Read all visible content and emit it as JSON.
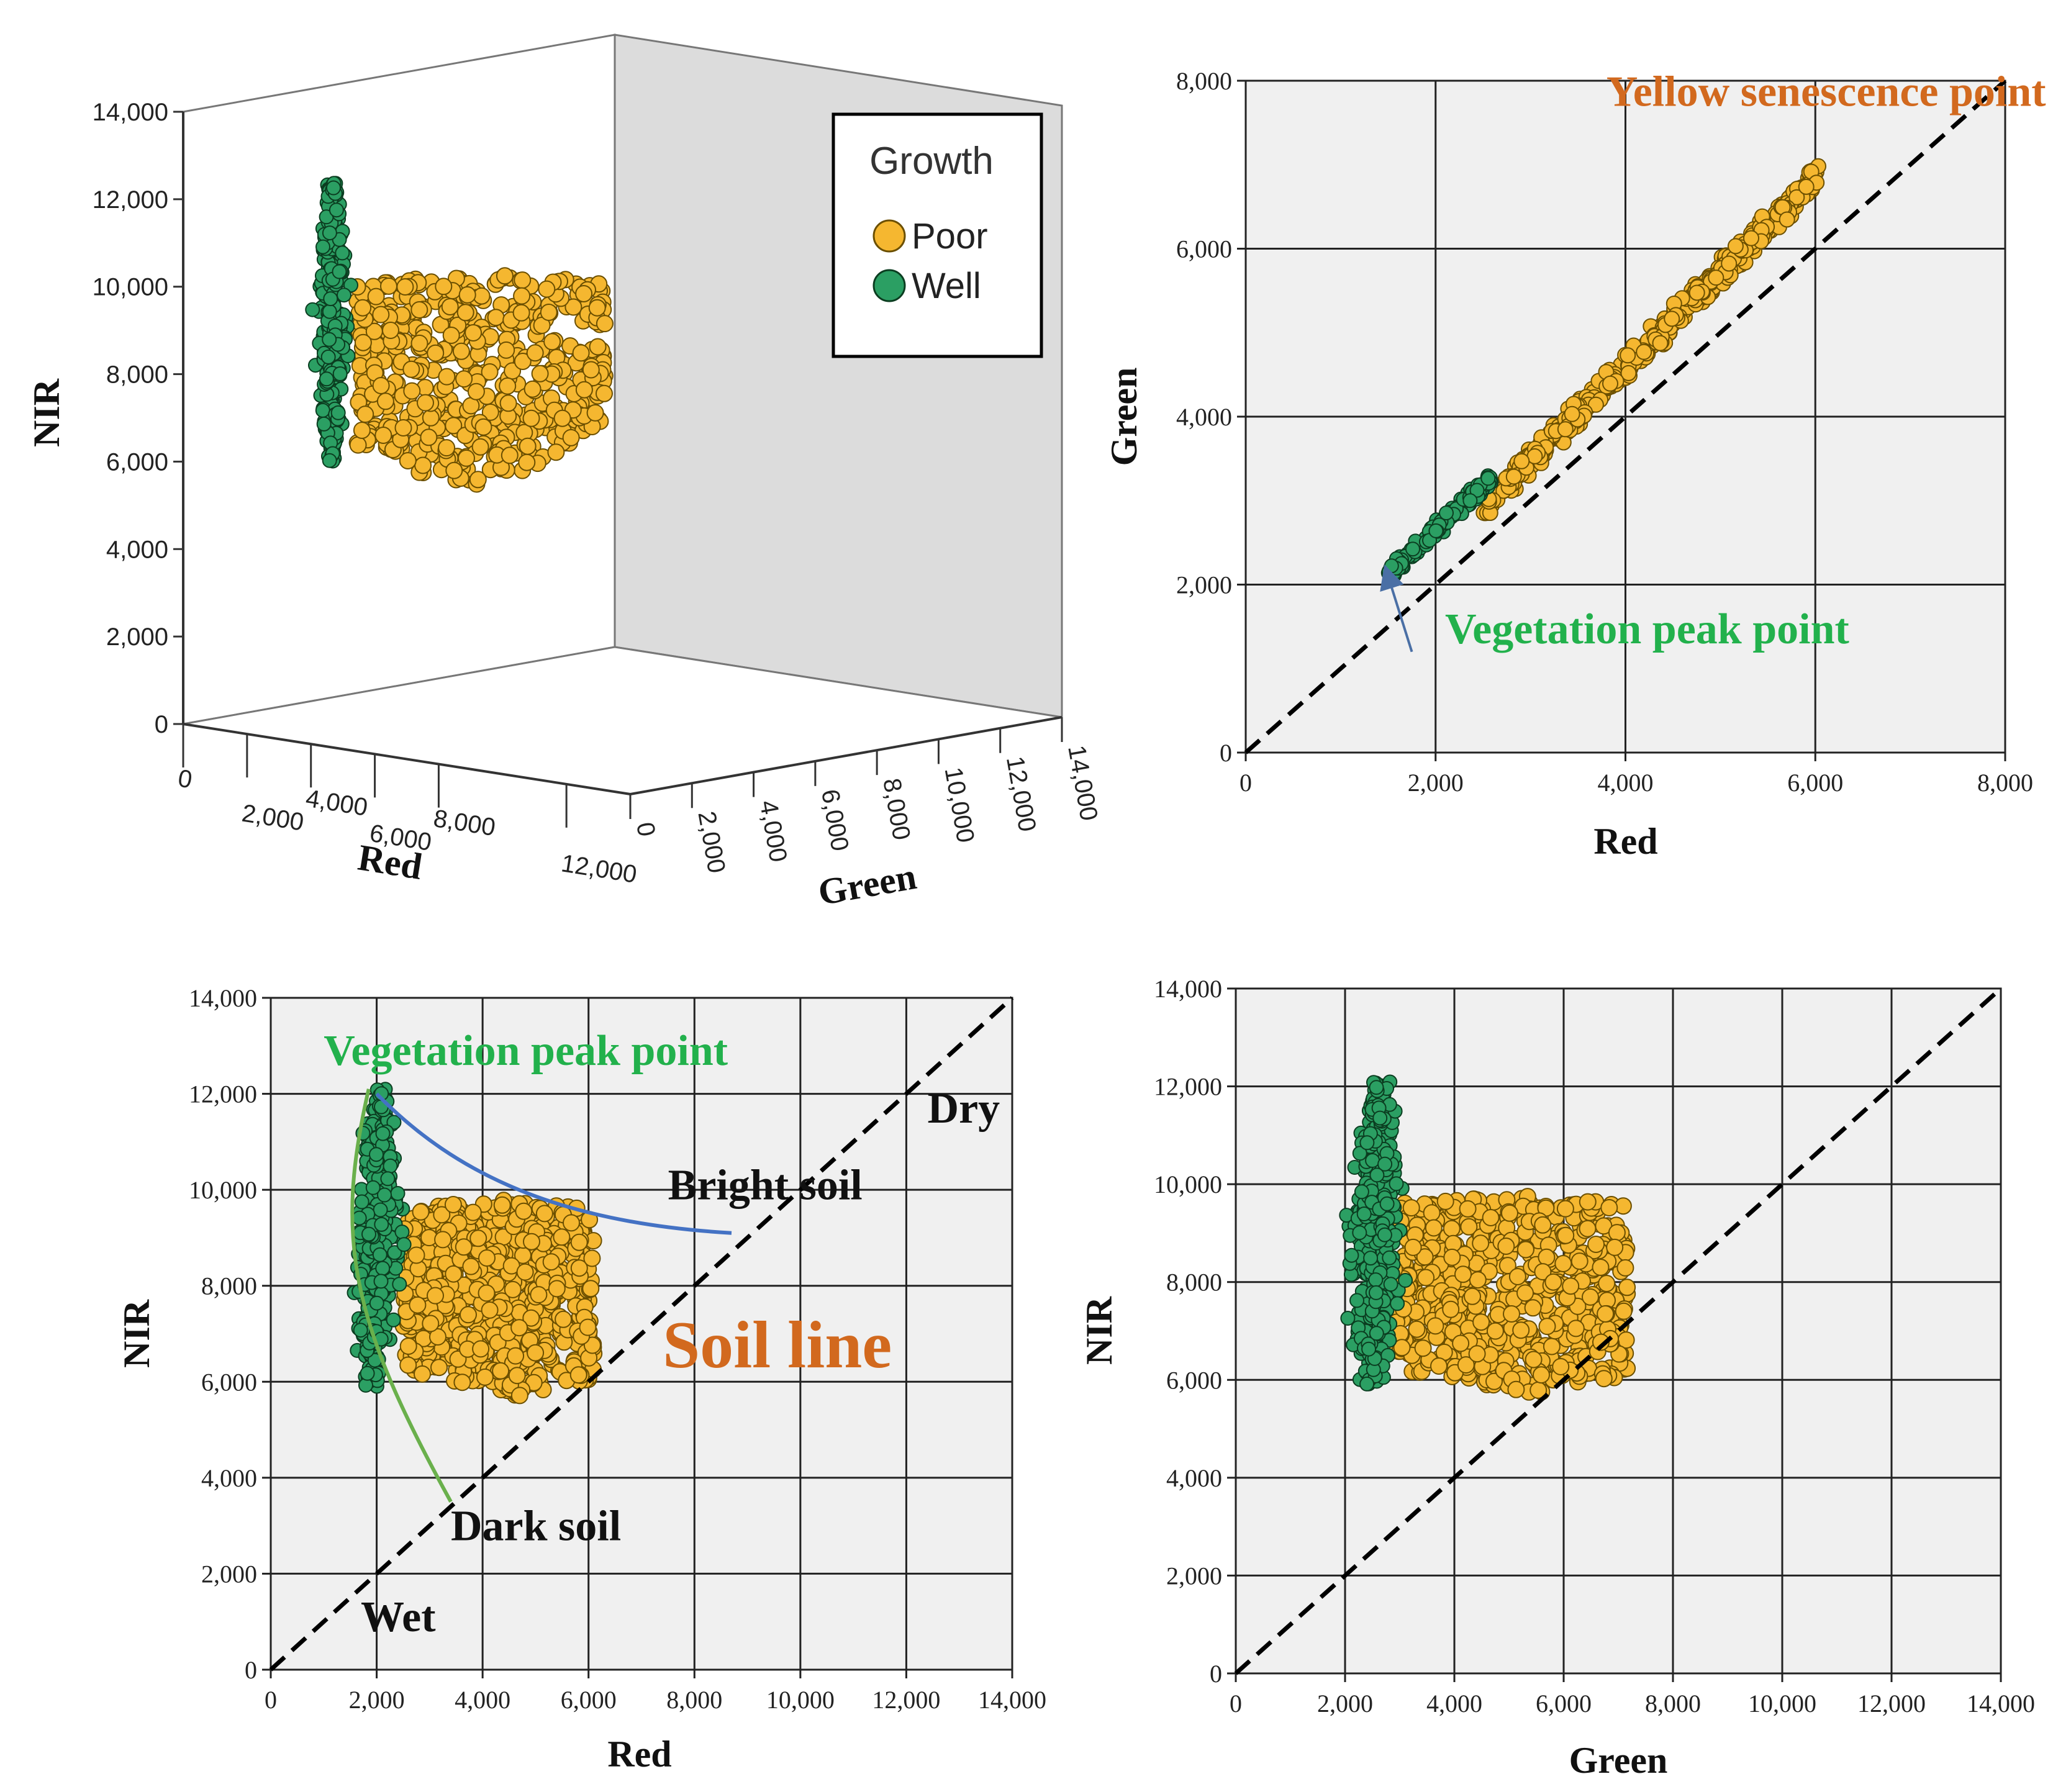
{
  "chart_data": [
    {
      "id": "p1",
      "type": "scatter",
      "title": "",
      "xlabel": "Red",
      "ylabel": "NIR",
      "zlabel": "Green",
      "x_ticks": [
        "0",
        "2,000",
        "4,000",
        "6,000",
        "8,000",
        "12,000"
      ],
      "z_ticks": [
        "0",
        "2,000",
        "4,000",
        "6,000",
        "8,000",
        "10,000",
        "12,000",
        "14,000"
      ],
      "y_ticks": [
        "0",
        "2,000",
        "4,000",
        "6,000",
        "8,000",
        "10,000",
        "12,000",
        "14,000"
      ],
      "ylim": [
        0,
        14000
      ],
      "legend": {
        "title": "Growth",
        "entries": [
          {
            "name": "Poor",
            "color": "#f5b730"
          },
          {
            "name": "Well",
            "color": "#2b9f63"
          }
        ]
      },
      "series": [
        {
          "name": "Well",
          "nir_range": [
            5900,
            12100
          ],
          "red_center": 2100,
          "green_center": 2700
        },
        {
          "name": "Poor",
          "nir_range": [
            5700,
            9800
          ],
          "red_range": [
            2500,
            6000
          ],
          "green_range": [
            2900,
            7200
          ]
        }
      ]
    },
    {
      "id": "p2",
      "type": "scatter",
      "xlabel": "Red",
      "ylabel": "Green",
      "xlim": [
        0,
        8000
      ],
      "ylim": [
        0,
        8000
      ],
      "x_ticks": [
        "0",
        "2,000",
        "4,000",
        "6,000",
        "8,000"
      ],
      "y_ticks": [
        "0",
        "2,000",
        "4,000",
        "6,000",
        "8,000"
      ],
      "reference_line": {
        "from": [
          0,
          0
        ],
        "to": [
          8000,
          8000
        ],
        "style": "dashed"
      },
      "annotations": [
        {
          "text": "Yellow senescence point",
          "color": "#d2691e",
          "at": [
            3800,
            7700
          ]
        },
        {
          "text": "Vegetation peak point",
          "color": "#22b14c",
          "at": [
            2100,
            1300
          ]
        }
      ],
      "arrow": {
        "from": [
          1750,
          1200
        ],
        "to": [
          1500,
          2100
        ],
        "color": "#4a6fa5"
      },
      "series": [
        {
          "name": "Well",
          "x_range": [
            1500,
            2600
          ],
          "y_range": [
            2100,
            3300
          ]
        },
        {
          "name": "Poor",
          "x_range": [
            2500,
            6050
          ],
          "y_range": [
            2800,
            7200
          ]
        }
      ]
    },
    {
      "id": "p3",
      "type": "scatter",
      "xlabel": "Red",
      "ylabel": "NIR",
      "xlim": [
        0,
        14000
      ],
      "ylim": [
        0,
        14000
      ],
      "x_ticks": [
        "0",
        "2,000",
        "4,000",
        "6,000",
        "8,000",
        "10,000",
        "12,000",
        "14,000"
      ],
      "y_ticks": [
        "0",
        "2,000",
        "4,000",
        "6,000",
        "8,000",
        "10,000",
        "12,000",
        "14,000"
      ],
      "reference_line": {
        "from": [
          0,
          0
        ],
        "to": [
          14000,
          14000
        ],
        "style": "dashed"
      },
      "annotations": [
        {
          "text": "Vegetation peak point",
          "color": "#22b14c",
          "at": [
            1000,
            12600
          ]
        },
        {
          "text": "Dry",
          "color": "#111111",
          "at": [
            12400,
            11400
          ]
        },
        {
          "text": "Bright soil",
          "color": "#111111",
          "at": [
            7500,
            9800
          ]
        },
        {
          "text": "Soil line",
          "color": "#d2691e",
          "at": [
            7400,
            6300
          ]
        },
        {
          "text": "Dark soil",
          "color": "#111111",
          "at": [
            3400,
            2700
          ]
        },
        {
          "text": "Wet",
          "color": "#111111",
          "at": [
            1700,
            800
          ]
        }
      ],
      "curves": [
        {
          "name": "vegetation-envelope",
          "color": "#6ab04c",
          "points": [
            [
              1850,
              12100
            ],
            [
              1200,
              9000
            ],
            [
              1500,
              7300
            ],
            [
              3400,
              3500
            ]
          ]
        },
        {
          "name": "bright-soil-curve",
          "color": "#4472c4",
          "points": [
            [
              2000,
              12000
            ],
            [
              3500,
              10300
            ],
            [
              5500,
              9300
            ],
            [
              8700,
              9100
            ]
          ]
        }
      ],
      "series": [
        {
          "name": "Well",
          "x_range": [
            1500,
            2500
          ],
          "y_range": [
            5900,
            12100
          ]
        },
        {
          "name": "Poor",
          "x_range": [
            2500,
            6100
          ],
          "y_range": [
            5700,
            9800
          ]
        }
      ]
    },
    {
      "id": "p4",
      "type": "scatter",
      "xlabel": "Green",
      "ylabel": "NIR",
      "xlim": [
        0,
        14000
      ],
      "ylim": [
        0,
        14000
      ],
      "x_ticks": [
        "0",
        "2,000",
        "4,000",
        "6,000",
        "8,000",
        "10,000",
        "12,000",
        "14,000"
      ],
      "y_ticks": [
        "0",
        "2,000",
        "4,000",
        "6,000",
        "8,000",
        "10,000",
        "12,000",
        "14,000"
      ],
      "reference_line": {
        "from": [
          0,
          0
        ],
        "to": [
          14000,
          14000
        ],
        "style": "dashed"
      },
      "series": [
        {
          "name": "Well",
          "x_range": [
            2000,
            3100
          ],
          "y_range": [
            5900,
            12100
          ]
        },
        {
          "name": "Poor",
          "x_range": [
            2900,
            7200
          ],
          "y_range": [
            5700,
            9800
          ]
        }
      ]
    }
  ],
  "colors": {
    "poor": "#f5b730",
    "well": "#2b9f63",
    "panel_bg": "#f0f0f0",
    "grid": "#222222"
  }
}
